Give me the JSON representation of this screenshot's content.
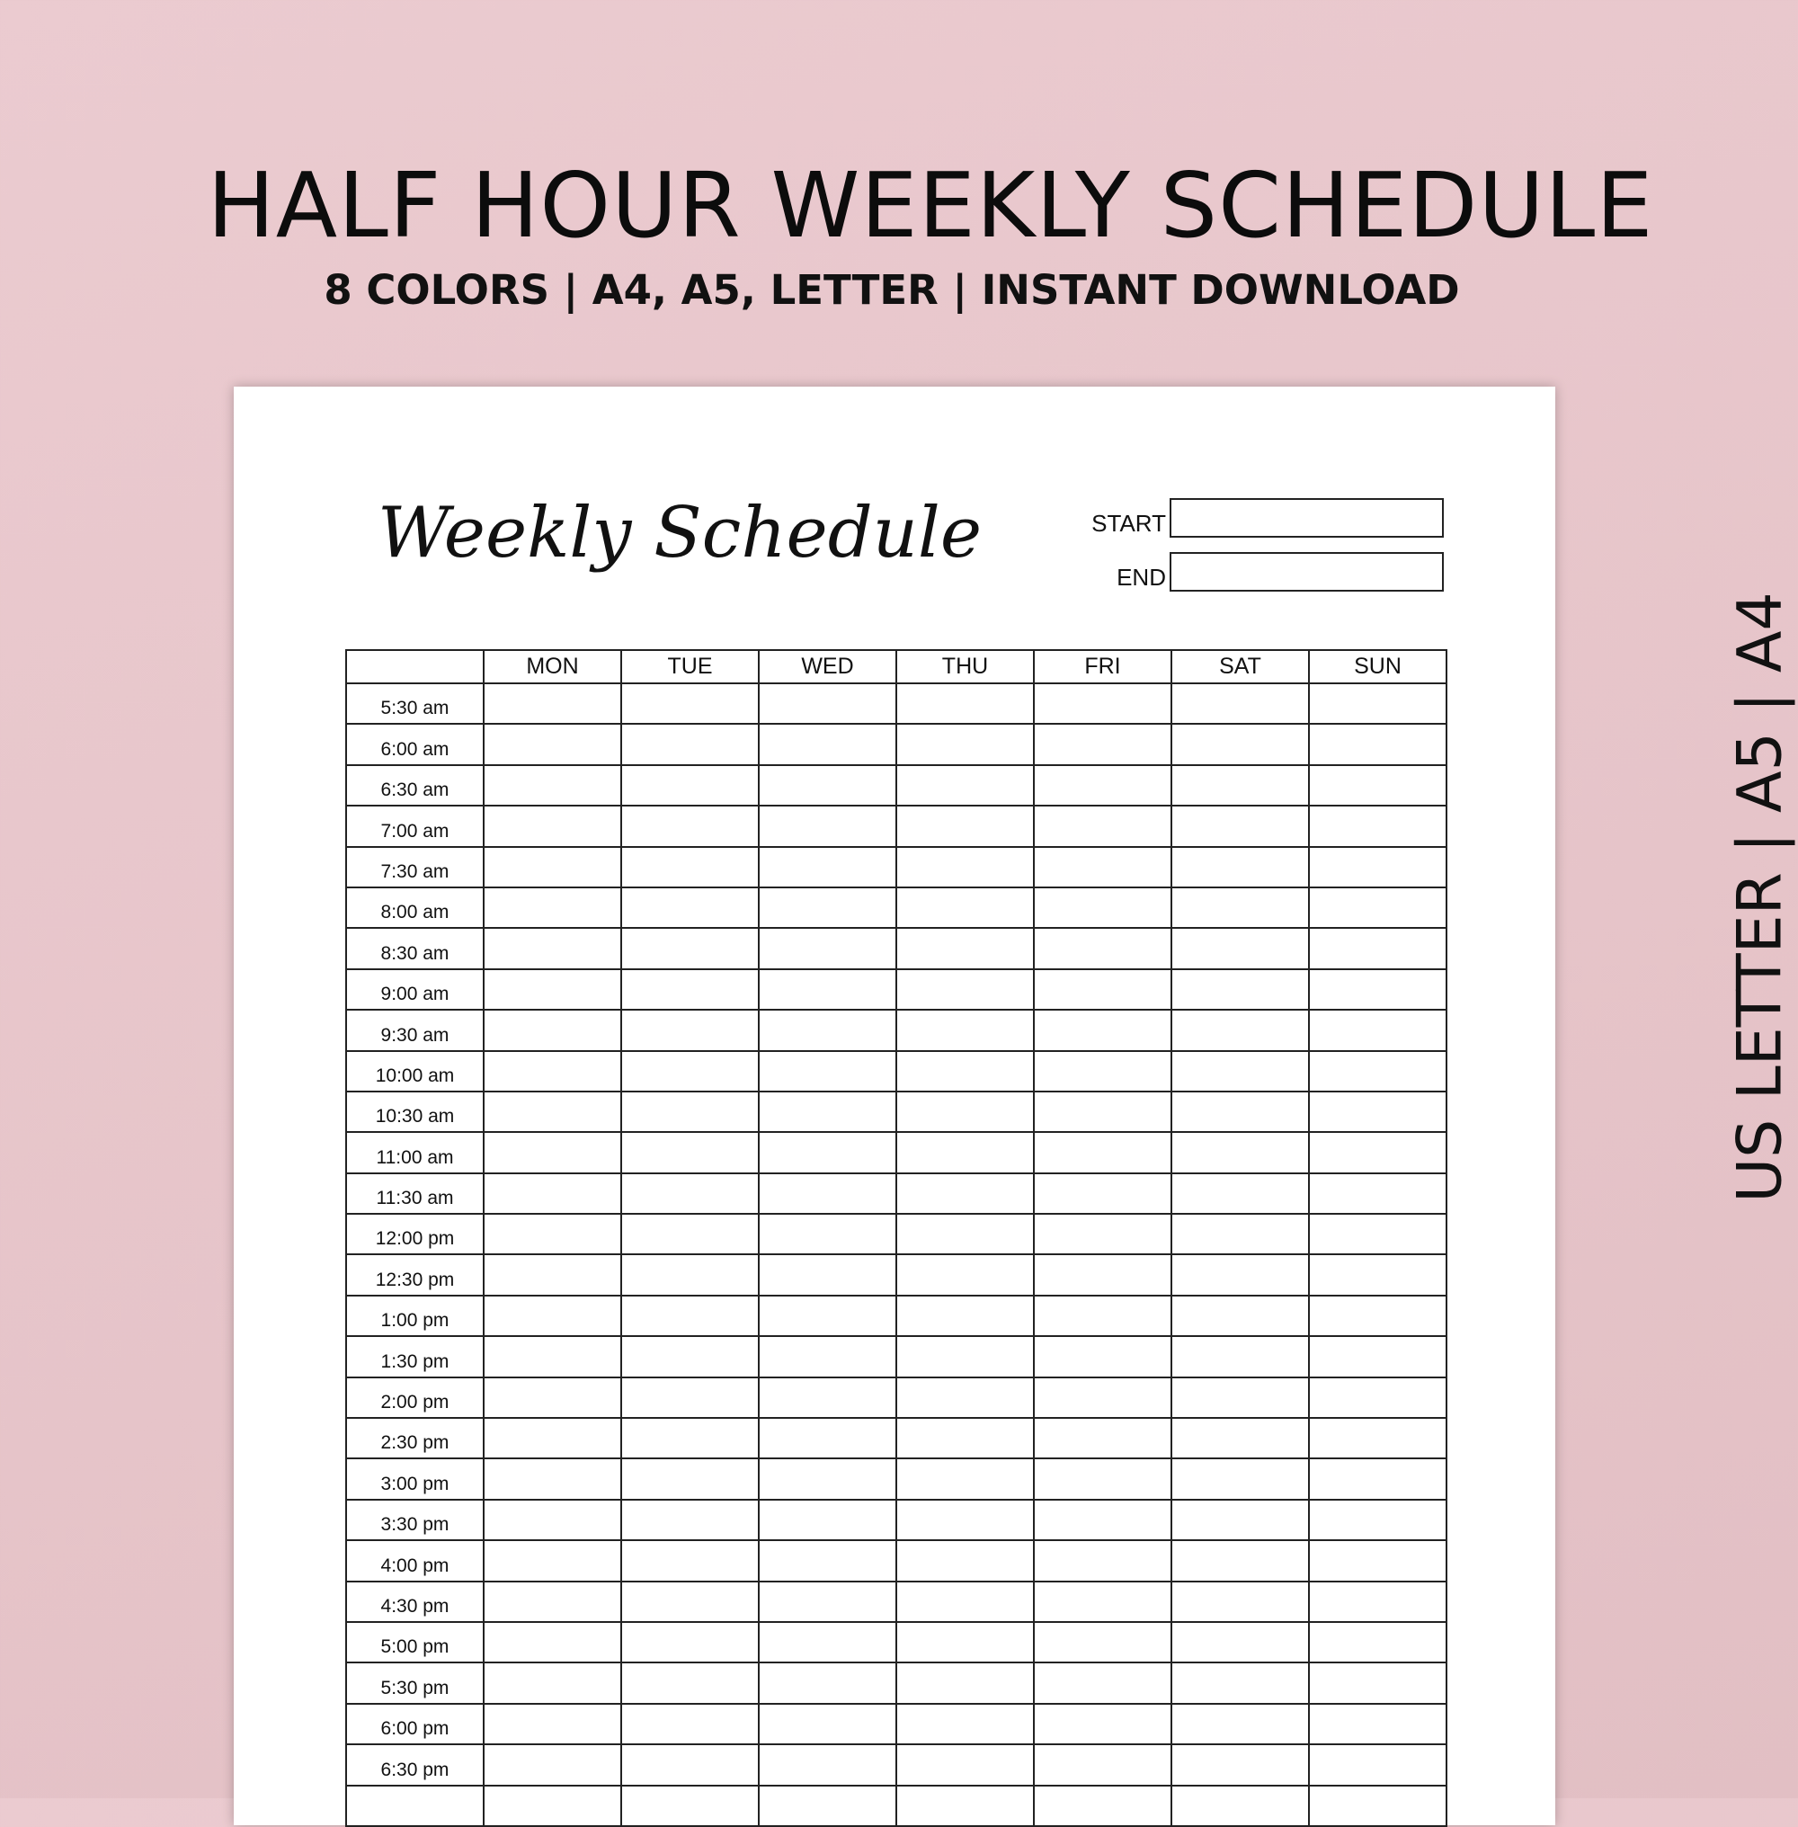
{
  "header": {
    "title": "HALF HOUR WEEKLY SCHEDULE",
    "subtitle": "8 COLORS | A4, A5, LETTER | INSTANT DOWNLOAD",
    "side_text": "US LETTER | A5 | A4"
  },
  "colors": {
    "background": "#e8c8cc",
    "paper": "#ffffff",
    "ink": "#111111"
  },
  "planner": {
    "title": "Weekly Schedule",
    "start_label": "START",
    "end_label": "END",
    "start_value": "",
    "end_value": "",
    "days": [
      "MON",
      "TUE",
      "WED",
      "THU",
      "FRI",
      "SAT",
      "SUN"
    ],
    "times": [
      "5:30 am",
      "6:00 am",
      "6:30 am",
      "7:00 am",
      "7:30 am",
      "8:00 am",
      "8:30 am",
      "9:00 am",
      "9:30 am",
      "10:00 am",
      "10:30 am",
      "11:00 am",
      "11:30 am",
      "12:00 pm",
      "12:30 pm",
      "1:00 pm",
      "1:30 pm",
      "2:00 pm",
      "2:30 pm",
      "3:00 pm",
      "3:30 pm",
      "4:00 pm",
      "4:30 pm",
      "5:00 pm",
      "5:30 pm",
      "6:00 pm",
      "6:30 pm",
      ""
    ]
  }
}
